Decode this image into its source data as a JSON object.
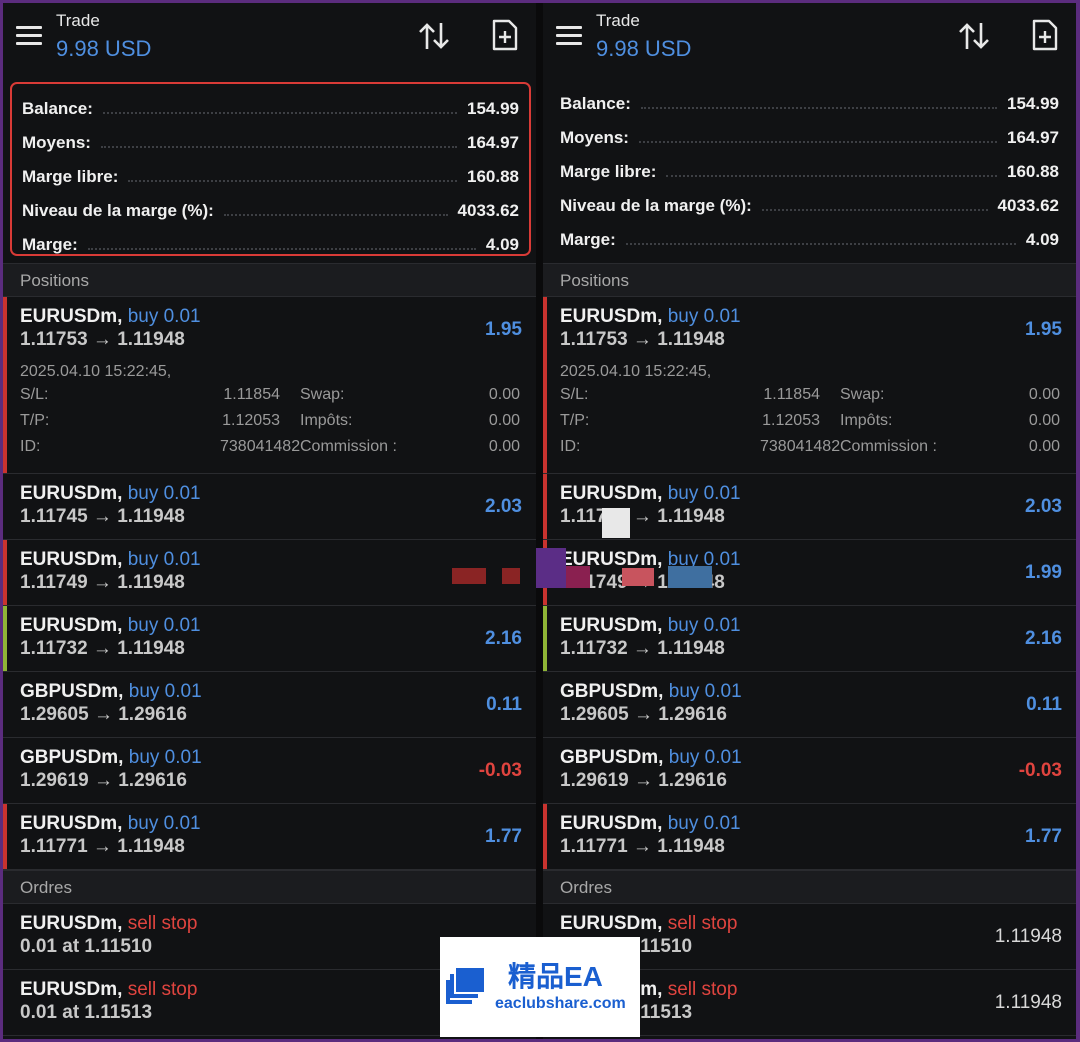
{
  "header": {
    "title": "Trade",
    "account": "9.98 USD"
  },
  "summary": [
    {
      "label": "Balance:",
      "value": "154.99"
    },
    {
      "label": "Moyens:",
      "value": "164.97"
    },
    {
      "label": "Marge libre:",
      "value": "160.88"
    },
    {
      "label": "Niveau de la marge (%):",
      "value": "4033.62"
    },
    {
      "label": "Marge:",
      "value": "4.09"
    }
  ],
  "sections": {
    "positions": "Positions",
    "orders": "Ordres"
  },
  "positions": [
    {
      "symbol": "EURUSDm,",
      "dir": "buy 0.01",
      "prices": "1.11753 → 1.11948",
      "profit": "1.95",
      "details": {
        "time": "2025.04.10 15:22:45,",
        "sl_label": "S/L:",
        "sl": "1.11854",
        "swap_label": "Swap:",
        "swap": "0.00",
        "tp_label": "T/P:",
        "tp": "1.12053",
        "tax_label": "Impôts:",
        "tax": "0.00",
        "id_label": "ID:",
        "id": "738041482",
        "comm_label": "Commission :",
        "comm": "0.00"
      }
    },
    {
      "symbol": "EURUSDm,",
      "dir": "buy 0.01",
      "prices": "1.11745 → 1.11948",
      "profit": "2.03"
    },
    {
      "symbol": "EURUSDm,",
      "dir": "buy 0.01",
      "prices": "1.11749 → 1.11948",
      "profit": "1.99"
    },
    {
      "symbol": "EURUSDm,",
      "dir": "buy 0.01",
      "prices": "1.11732 → 1.11948",
      "profit": "2.16"
    },
    {
      "symbol": "GBPUSDm,",
      "dir": "buy 0.01",
      "prices": "1.29605 → 1.29616",
      "profit": "0.11"
    },
    {
      "symbol": "GBPUSDm,",
      "dir": "buy 0.01",
      "prices": "1.29619 → 1.29616",
      "profit": "-0.03"
    },
    {
      "symbol": "EURUSDm,",
      "dir": "buy 0.01",
      "prices": "1.11771 → 1.11948",
      "profit": "1.77"
    }
  ],
  "orders": [
    {
      "symbol": "EURUSDm,",
      "dir": "sell stop",
      "detail": "0.01 at 1.11510",
      "price": "1.11948"
    },
    {
      "symbol": "EURUSDm,",
      "dir": "sell stop",
      "detail": "0.01 at 1.11513",
      "price": "1.11948"
    }
  ],
  "watermark": {
    "title": "精品EA",
    "url": "eaclubshare.com"
  },
  "colors": {
    "accent_blue": "#4f8fe0",
    "loss_red": "#e0443f",
    "highlight_border": "#d93b37",
    "green_marker": "#8fb536"
  }
}
